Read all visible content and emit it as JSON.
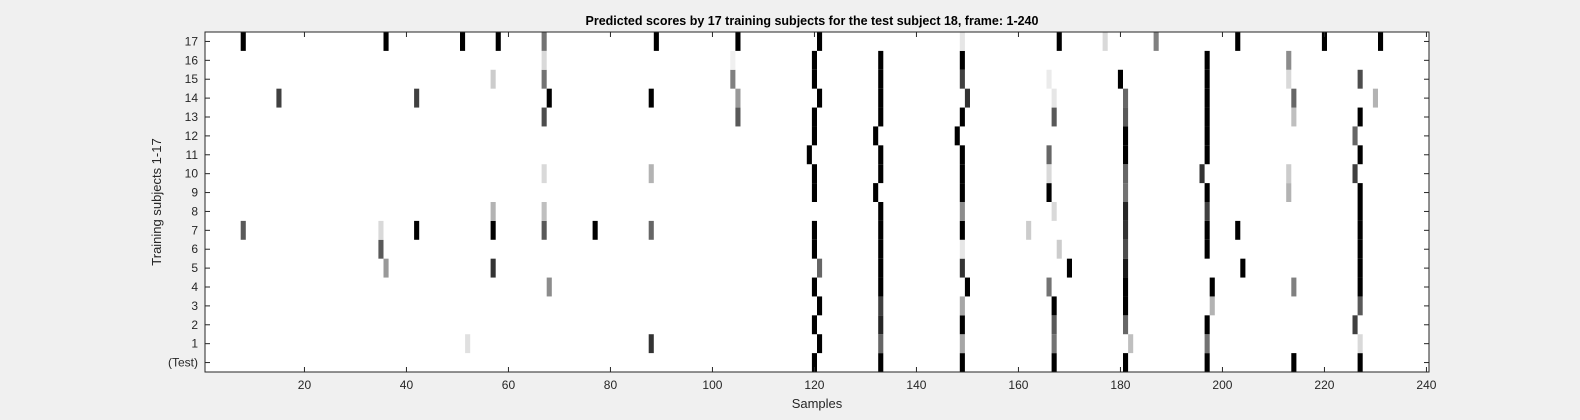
{
  "chart_data": {
    "type": "heatmap",
    "title": "Predicted scores by 17 training subjects for the test subject 18, frame: 1-240",
    "xlabel": "Samples",
    "ylabel": "Training subjects 1-17",
    "xlim": [
      1,
      240
    ],
    "xticks": [
      20,
      40,
      60,
      80,
      100,
      120,
      140,
      160,
      180,
      200,
      220,
      240
    ],
    "rows": [
      "(Test)",
      "1",
      "2",
      "3",
      "4",
      "5",
      "6",
      "7",
      "8",
      "9",
      "10",
      "11",
      "12",
      "13",
      "14",
      "15",
      "16",
      "17"
    ],
    "value_scale": "white = 0, black = 1",
    "colors": {
      "background": "#f0f0f0",
      "plot": "#ffffff",
      "axis": "#262626",
      "mark": "#000000"
    },
    "cells": [
      {
        "row": 0,
        "x": 120,
        "v": 1.0
      },
      {
        "row": 0,
        "x": 133,
        "v": 1.0
      },
      {
        "row": 0,
        "x": 149,
        "v": 1.0
      },
      {
        "row": 0,
        "x": 167,
        "v": 1.0
      },
      {
        "row": 0,
        "x": 181,
        "v": 1.0
      },
      {
        "row": 0,
        "x": 197,
        "v": 1.0
      },
      {
        "row": 0,
        "x": 214,
        "v": 1.0
      },
      {
        "row": 0,
        "x": 227,
        "v": 1.0
      },
      {
        "row": 1,
        "x": 52,
        "v": 0.12
      },
      {
        "row": 1,
        "x": 88,
        "v": 0.8
      },
      {
        "row": 1,
        "x": 121,
        "v": 1.0
      },
      {
        "row": 1,
        "x": 133,
        "v": 0.6
      },
      {
        "row": 1,
        "x": 149,
        "v": 0.35
      },
      {
        "row": 1,
        "x": 167,
        "v": 0.55
      },
      {
        "row": 1,
        "x": 182,
        "v": 0.25
      },
      {
        "row": 1,
        "x": 197,
        "v": 0.55
      },
      {
        "row": 1,
        "x": 227,
        "v": 0.15
      },
      {
        "row": 2,
        "x": 120,
        "v": 1.0
      },
      {
        "row": 2,
        "x": 133,
        "v": 0.85
      },
      {
        "row": 2,
        "x": 149,
        "v": 1.0
      },
      {
        "row": 2,
        "x": 167,
        "v": 0.65
      },
      {
        "row": 2,
        "x": 181,
        "v": 0.6
      },
      {
        "row": 2,
        "x": 197,
        "v": 1.0
      },
      {
        "row": 2,
        "x": 226,
        "v": 0.75
      },
      {
        "row": 3,
        "x": 121,
        "v": 1.0
      },
      {
        "row": 3,
        "x": 133,
        "v": 0.75
      },
      {
        "row": 3,
        "x": 149,
        "v": 0.35
      },
      {
        "row": 3,
        "x": 167,
        "v": 1.0
      },
      {
        "row": 3,
        "x": 181,
        "v": 1.0
      },
      {
        "row": 3,
        "x": 198,
        "v": 0.3
      },
      {
        "row": 3,
        "x": 227,
        "v": 0.65
      },
      {
        "row": 4,
        "x": 68,
        "v": 0.45
      },
      {
        "row": 4,
        "x": 120,
        "v": 1.0
      },
      {
        "row": 4,
        "x": 133,
        "v": 1.0
      },
      {
        "row": 4,
        "x": 150,
        "v": 1.0
      },
      {
        "row": 4,
        "x": 166,
        "v": 0.55
      },
      {
        "row": 4,
        "x": 181,
        "v": 1.0
      },
      {
        "row": 4,
        "x": 198,
        "v": 1.0
      },
      {
        "row": 4,
        "x": 214,
        "v": 0.5
      },
      {
        "row": 4,
        "x": 227,
        "v": 1.0
      },
      {
        "row": 5,
        "x": 36,
        "v": 0.4
      },
      {
        "row": 5,
        "x": 57,
        "v": 0.8
      },
      {
        "row": 5,
        "x": 121,
        "v": 0.6
      },
      {
        "row": 5,
        "x": 133,
        "v": 1.0
      },
      {
        "row": 5,
        "x": 149,
        "v": 0.8
      },
      {
        "row": 5,
        "x": 170,
        "v": 1.0
      },
      {
        "row": 5,
        "x": 181,
        "v": 0.9
      },
      {
        "row": 5,
        "x": 204,
        "v": 1.0
      },
      {
        "row": 5,
        "x": 227,
        "v": 1.0
      },
      {
        "row": 6,
        "x": 35,
        "v": 0.65
      },
      {
        "row": 6,
        "x": 120,
        "v": 1.0
      },
      {
        "row": 6,
        "x": 133,
        "v": 1.0
      },
      {
        "row": 6,
        "x": 149,
        "v": 0.1
      },
      {
        "row": 6,
        "x": 168,
        "v": 0.2
      },
      {
        "row": 6,
        "x": 181,
        "v": 0.7
      },
      {
        "row": 6,
        "x": 197,
        "v": 1.0
      },
      {
        "row": 6,
        "x": 227,
        "v": 1.0
      },
      {
        "row": 7,
        "x": 8,
        "v": 0.65
      },
      {
        "row": 7,
        "x": 35,
        "v": 0.15
      },
      {
        "row": 7,
        "x": 42,
        "v": 1.0
      },
      {
        "row": 7,
        "x": 57,
        "v": 1.0
      },
      {
        "row": 7,
        "x": 67,
        "v": 0.65
      },
      {
        "row": 7,
        "x": 77,
        "v": 1.0
      },
      {
        "row": 7,
        "x": 88,
        "v": 0.6
      },
      {
        "row": 7,
        "x": 120,
        "v": 1.0
      },
      {
        "row": 7,
        "x": 133,
        "v": 1.0
      },
      {
        "row": 7,
        "x": 149,
        "v": 1.0
      },
      {
        "row": 7,
        "x": 162,
        "v": 0.2
      },
      {
        "row": 7,
        "x": 181,
        "v": 0.8
      },
      {
        "row": 7,
        "x": 197,
        "v": 1.0
      },
      {
        "row": 7,
        "x": 203,
        "v": 1.0
      },
      {
        "row": 7,
        "x": 227,
        "v": 1.0
      },
      {
        "row": 8,
        "x": 57,
        "v": 0.3
      },
      {
        "row": 8,
        "x": 67,
        "v": 0.25
      },
      {
        "row": 8,
        "x": 133,
        "v": 1.0
      },
      {
        "row": 8,
        "x": 149,
        "v": 0.45
      },
      {
        "row": 8,
        "x": 167,
        "v": 0.15
      },
      {
        "row": 8,
        "x": 181,
        "v": 0.85
      },
      {
        "row": 8,
        "x": 197,
        "v": 0.75
      },
      {
        "row": 8,
        "x": 227,
        "v": 1.0
      },
      {
        "row": 9,
        "x": 120,
        "v": 1.0
      },
      {
        "row": 9,
        "x": 132,
        "v": 1.0
      },
      {
        "row": 9,
        "x": 149,
        "v": 1.0
      },
      {
        "row": 9,
        "x": 166,
        "v": 1.0
      },
      {
        "row": 9,
        "x": 181,
        "v": 0.55
      },
      {
        "row": 9,
        "x": 197,
        "v": 1.0
      },
      {
        "row": 9,
        "x": 213,
        "v": 0.3
      },
      {
        "row": 9,
        "x": 227,
        "v": 1.0
      },
      {
        "row": 10,
        "x": 67,
        "v": 0.15
      },
      {
        "row": 10,
        "x": 88,
        "v": 0.3
      },
      {
        "row": 10,
        "x": 120,
        "v": 1.0
      },
      {
        "row": 10,
        "x": 133,
        "v": 1.0
      },
      {
        "row": 10,
        "x": 149,
        "v": 1.0
      },
      {
        "row": 10,
        "x": 166,
        "v": 0.15
      },
      {
        "row": 10,
        "x": 181,
        "v": 0.6
      },
      {
        "row": 10,
        "x": 196,
        "v": 0.8
      },
      {
        "row": 10,
        "x": 213,
        "v": 0.2
      },
      {
        "row": 10,
        "x": 226,
        "v": 0.75
      },
      {
        "row": 11,
        "x": 119,
        "v": 1.0
      },
      {
        "row": 11,
        "x": 133,
        "v": 1.0
      },
      {
        "row": 11,
        "x": 149,
        "v": 1.0
      },
      {
        "row": 11,
        "x": 166,
        "v": 0.6
      },
      {
        "row": 11,
        "x": 181,
        "v": 1.0
      },
      {
        "row": 11,
        "x": 197,
        "v": 1.0
      },
      {
        "row": 11,
        "x": 227,
        "v": 1.0
      },
      {
        "row": 12,
        "x": 120,
        "v": 1.0
      },
      {
        "row": 12,
        "x": 132,
        "v": 1.0
      },
      {
        "row": 12,
        "x": 148,
        "v": 1.0
      },
      {
        "row": 12,
        "x": 181,
        "v": 1.0
      },
      {
        "row": 12,
        "x": 197,
        "v": 1.0
      },
      {
        "row": 12,
        "x": 226,
        "v": 0.6
      },
      {
        "row": 13,
        "x": 67,
        "v": 0.7
      },
      {
        "row": 13,
        "x": 105,
        "v": 0.65
      },
      {
        "row": 13,
        "x": 120,
        "v": 1.0
      },
      {
        "row": 13,
        "x": 133,
        "v": 1.0
      },
      {
        "row": 13,
        "x": 149,
        "v": 1.0
      },
      {
        "row": 13,
        "x": 167,
        "v": 0.65
      },
      {
        "row": 13,
        "x": 181,
        "v": 0.65
      },
      {
        "row": 13,
        "x": 197,
        "v": 1.0
      },
      {
        "row": 13,
        "x": 214,
        "v": 0.25
      },
      {
        "row": 13,
        "x": 227,
        "v": 1.0
      },
      {
        "row": 14,
        "x": 15,
        "v": 0.75
      },
      {
        "row": 14,
        "x": 42,
        "v": 0.75
      },
      {
        "row": 14,
        "x": 68,
        "v": 1.0
      },
      {
        "row": 14,
        "x": 88,
        "v": 1.0
      },
      {
        "row": 14,
        "x": 105,
        "v": 0.4
      },
      {
        "row": 14,
        "x": 121,
        "v": 1.0
      },
      {
        "row": 14,
        "x": 133,
        "v": 1.0
      },
      {
        "row": 14,
        "x": 150,
        "v": 0.8
      },
      {
        "row": 14,
        "x": 167,
        "v": 0.1
      },
      {
        "row": 14,
        "x": 181,
        "v": 0.6
      },
      {
        "row": 14,
        "x": 197,
        "v": 1.0
      },
      {
        "row": 14,
        "x": 214,
        "v": 0.6
      },
      {
        "row": 14,
        "x": 230,
        "v": 0.3
      },
      {
        "row": 15,
        "x": 57,
        "v": 0.2
      },
      {
        "row": 15,
        "x": 67,
        "v": 0.55
      },
      {
        "row": 15,
        "x": 104,
        "v": 0.5
      },
      {
        "row": 15,
        "x": 120,
        "v": 1.0
      },
      {
        "row": 15,
        "x": 133,
        "v": 1.0
      },
      {
        "row": 15,
        "x": 149,
        "v": 0.75
      },
      {
        "row": 15,
        "x": 166,
        "v": 0.08
      },
      {
        "row": 15,
        "x": 180,
        "v": 1.0
      },
      {
        "row": 15,
        "x": 197,
        "v": 1.0
      },
      {
        "row": 15,
        "x": 213,
        "v": 0.15
      },
      {
        "row": 15,
        "x": 227,
        "v": 0.7
      },
      {
        "row": 16,
        "x": 67,
        "v": 0.15
      },
      {
        "row": 16,
        "x": 104,
        "v": 0.06
      },
      {
        "row": 16,
        "x": 120,
        "v": 1.0
      },
      {
        "row": 16,
        "x": 133,
        "v": 1.0
      },
      {
        "row": 16,
        "x": 149,
        "v": 1.0
      },
      {
        "row": 16,
        "x": 197,
        "v": 1.0
      },
      {
        "row": 16,
        "x": 213,
        "v": 0.45
      },
      {
        "row": 17,
        "x": 8,
        "v": 1.0
      },
      {
        "row": 17,
        "x": 36,
        "v": 1.0
      },
      {
        "row": 17,
        "x": 51,
        "v": 1.0
      },
      {
        "row": 17,
        "x": 58,
        "v": 1.0
      },
      {
        "row": 17,
        "x": 67,
        "v": 0.55
      },
      {
        "row": 17,
        "x": 89,
        "v": 1.0
      },
      {
        "row": 17,
        "x": 105,
        "v": 1.0
      },
      {
        "row": 17,
        "x": 121,
        "v": 1.0
      },
      {
        "row": 17,
        "x": 149,
        "v": 0.1
      },
      {
        "row": 17,
        "x": 168,
        "v": 1.0
      },
      {
        "row": 17,
        "x": 177,
        "v": 0.15
      },
      {
        "row": 17,
        "x": 187,
        "v": 0.5
      },
      {
        "row": 17,
        "x": 203,
        "v": 1.0
      },
      {
        "row": 17,
        "x": 220,
        "v": 1.0
      },
      {
        "row": 17,
        "x": 231,
        "v": 1.0
      }
    ]
  }
}
